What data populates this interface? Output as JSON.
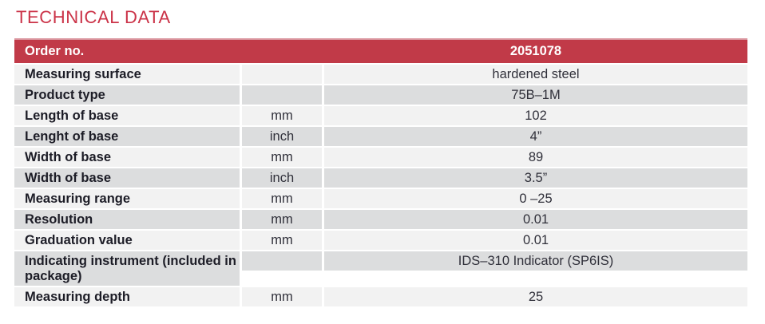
{
  "page": {
    "title": "TECHNICAL DATA"
  },
  "colors": {
    "title_red": "#cb3348",
    "accent_red": "#c13a48",
    "accent_red_top": "#d9929b",
    "row_light": "#f2f2f2",
    "row_dark": "#dcddde",
    "label_text": "#1c1c26",
    "value_text": "#30303a"
  },
  "table": {
    "header": {
      "label": "Order no.",
      "unit": "",
      "value": "2051078"
    },
    "rows": [
      {
        "label": "Measuring surface",
        "unit": "",
        "value": "hardened steel",
        "shade": "light"
      },
      {
        "label": "Product type",
        "unit": "",
        "value": "75B–1M",
        "shade": "dark"
      },
      {
        "label": "Length of base",
        "unit": "mm",
        "value": "102",
        "shade": "light"
      },
      {
        "label": "Lenght of base",
        "unit": "inch",
        "value": "4”",
        "shade": "dark"
      },
      {
        "label": "Width of base",
        "unit": "mm",
        "value": "89",
        "shade": "light"
      },
      {
        "label": "Width of base",
        "unit": "inch",
        "value": "3.5”",
        "shade": "dark"
      },
      {
        "label": "Measuring range",
        "unit": "mm",
        "value": "0 –25",
        "shade": "light"
      },
      {
        "label": "Resolution",
        "unit": "mm",
        "value": "0.01",
        "shade": "dark"
      },
      {
        "label": "Graduation value",
        "unit": "mm",
        "value": "0.01",
        "shade": "light"
      },
      {
        "label": "Indicating instrument (included in package)",
        "unit": "",
        "value": "IDS–310 Indicator (SP6IS)",
        "shade": "dark"
      },
      {
        "label": "Measuring depth",
        "unit": "mm",
        "value": "25",
        "shade": "light"
      }
    ]
  }
}
